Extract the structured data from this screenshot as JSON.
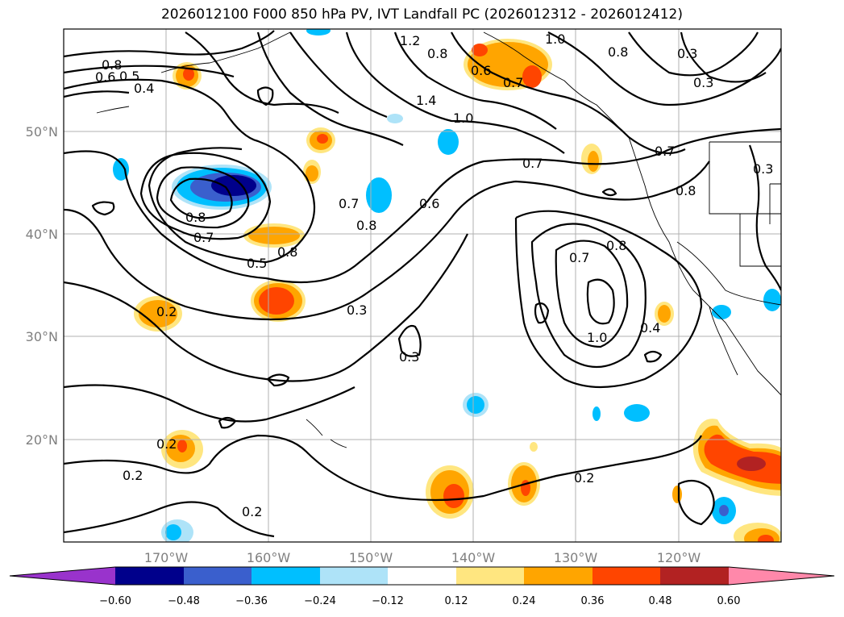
{
  "title": "2026012100 F000 850 hPa PV, IVT Landfall PC (2026012312 - 2026012412)",
  "lat_ticks": [
    "50°N",
    "40°N",
    "30°N",
    "20°N"
  ],
  "lon_ticks": [
    "170°W",
    "160°W",
    "150°W",
    "140°W",
    "130°W",
    "120°W"
  ],
  "colorbar": {
    "ticks": [
      "−0.60",
      "−0.48",
      "−0.36",
      "−0.24",
      "−0.12",
      "0.12",
      "0.24",
      "0.36",
      "0.48",
      "0.60"
    ],
    "colors": [
      "#9933cc",
      "#00008b",
      "#3a5fcd",
      "#00bfff",
      "#aee3f8",
      "#ffffff",
      "#ffe680",
      "#ffa500",
      "#ff4500",
      "#b22222",
      "#ff88aa"
    ]
  },
  "contour_labels": [
    "0.8",
    "0.6",
    "0.5",
    "0.4",
    "1.2",
    "0.8",
    "0.6",
    "0.7",
    "1.0",
    "0.8",
    "0.3",
    "0.3",
    "1.4",
    "1.0",
    "0.7",
    "0.7",
    "0.8",
    "0.3",
    "0.8",
    "0.7",
    "0.7",
    "0.8",
    "0.6",
    "0.8",
    "0.5",
    "0.3",
    "0.2",
    "0.3",
    "0.7",
    "0.8",
    "1.0",
    "0.4",
    "0.2",
    "0.2",
    "0.2",
    "0.2"
  ]
}
